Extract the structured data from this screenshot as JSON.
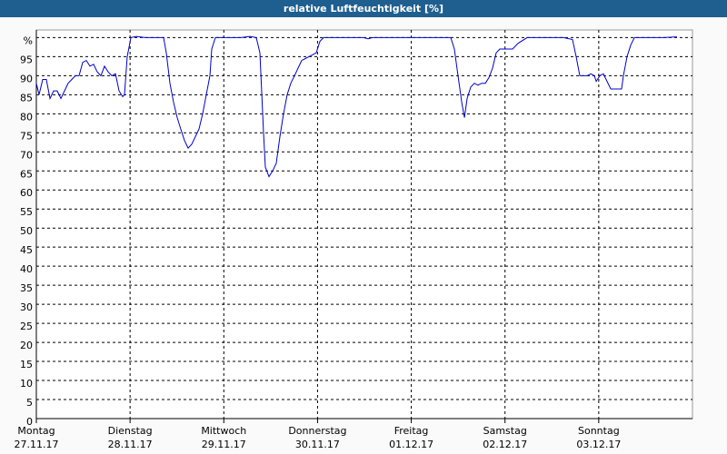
{
  "chart_data": {
    "type": "line",
    "title": "relative Luftfeuchtigkeit [%]",
    "color": "#0000cc",
    "grid": true,
    "x": [
      0,
      0.029,
      0.068,
      0.107,
      0.145,
      0.184,
      0.223,
      0.262,
      0.301,
      0.339,
      0.378,
      0.417,
      0.456,
      0.494,
      0.533,
      0.572,
      0.611,
      0.65,
      0.688,
      0.727,
      0.766,
      0.805,
      0.844,
      0.882,
      0.921,
      0.94,
      0.97,
      1.008,
      1.066,
      1.163,
      1.26,
      1.357,
      1.386,
      1.425,
      1.464,
      1.503,
      1.541,
      1.58,
      1.619,
      1.658,
      1.697,
      1.735,
      1.774,
      1.813,
      1.852,
      1.871,
      1.91,
      1.988,
      2.085,
      2.182,
      2.278,
      2.346,
      2.385,
      2.405,
      2.424,
      2.443,
      2.482,
      2.521,
      2.56,
      2.598,
      2.637,
      2.676,
      2.715,
      2.754,
      2.792,
      2.831,
      2.87,
      2.909,
      2.947,
      2.986,
      3.025,
      3.064,
      3.2,
      3.393,
      3.49,
      3.539,
      3.587,
      3.684,
      3.781,
      3.975,
      4.169,
      4.363,
      4.421,
      4.46,
      4.499,
      4.538,
      4.567,
      4.596,
      4.634,
      4.673,
      4.712,
      4.751,
      4.79,
      4.828,
      4.867,
      4.906,
      4.945,
      5.003,
      5.08,
      5.139,
      5.236,
      5.333,
      5.43,
      5.527,
      5.623,
      5.72,
      5.759,
      5.798,
      5.837,
      5.876,
      5.914,
      5.953,
      5.973,
      6.011,
      6.05,
      6.089,
      6.128,
      6.166,
      6.205,
      6.244,
      6.263,
      6.302,
      6.341,
      6.38,
      6.496,
      6.69,
      6.835
    ],
    "values": [
      88,
      85,
      89,
      89,
      84,
      86,
      86,
      84,
      86,
      88,
      89,
      90,
      90,
      93.5,
      94,
      92.5,
      93,
      91,
      90,
      92.5,
      91,
      90,
      90.5,
      86,
      84.5,
      85,
      95,
      100,
      100.3,
      100,
      100,
      100,
      96,
      88,
      83,
      79,
      76,
      73,
      71,
      72,
      74,
      76,
      80,
      85,
      90,
      97,
      100,
      100,
      100,
      100,
      100.3,
      100,
      96,
      85,
      75,
      66,
      63.5,
      65,
      67,
      74,
      80,
      85,
      88,
      90,
      92,
      94,
      94.5,
      95,
      95.5,
      96,
      99,
      100,
      100,
      100,
      100,
      99.7,
      100,
      100,
      100,
      100,
      100,
      100,
      100,
      97,
      90,
      83,
      79,
      84,
      87,
      88,
      87.5,
      88,
      88,
      89.5,
      92,
      96,
      97,
      97,
      97,
      98.5,
      100,
      100,
      100,
      100,
      100,
      99.5,
      95,
      90,
      90,
      90,
      90.5,
      90,
      88.5,
      90,
      90.5,
      88.5,
      86.5,
      86.5,
      86.5,
      86.5,
      90,
      95,
      98,
      100,
      100,
      100,
      100.2
    ],
    "xlim": [
      0,
      7
    ],
    "xticks": [
      {
        "value": 0,
        "label": "Montag",
        "sublabel": "27.11.17"
      },
      {
        "value": 1,
        "label": "Dienstag",
        "sublabel": "28.11.17"
      },
      {
        "value": 2,
        "label": "Mittwoch",
        "sublabel": "29.11.17"
      },
      {
        "value": 3,
        "label": "Donnerstag",
        "sublabel": "30.11.17"
      },
      {
        "value": 4,
        "label": "Freitag",
        "sublabel": "01.12.17"
      },
      {
        "value": 5,
        "label": "Samstag",
        "sublabel": "02.12.17"
      },
      {
        "value": 6,
        "label": "Sonntag",
        "sublabel": "03.12.17"
      }
    ],
    "ylim": [
      0,
      102
    ],
    "yticks": [
      0,
      5,
      10,
      15,
      20,
      25,
      30,
      35,
      40,
      45,
      50,
      55,
      60,
      65,
      70,
      75,
      80,
      85,
      90,
      95,
      {
        "value": 100,
        "label": "%"
      }
    ]
  }
}
